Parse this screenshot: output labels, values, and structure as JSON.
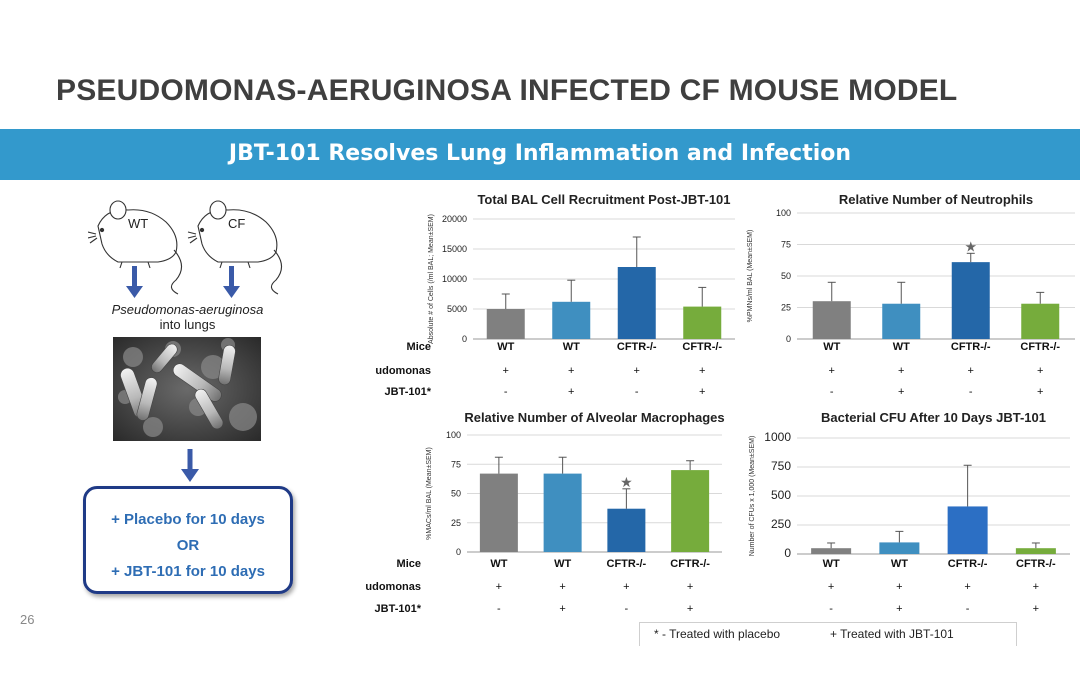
{
  "slide": {
    "title": "PSEUDOMONAS-AERUGINOSA INFECTED CF MOUSE MODEL",
    "banner": "JBT-101 Resolves Lung Inflammation and Infection",
    "page_number": "26"
  },
  "left_panel": {
    "mouse_labels": [
      "WT",
      "CF"
    ],
    "infection_label_italic": "Pseudomonas-aeruginosa",
    "infection_label_rest": "into lungs",
    "treatment": {
      "line1": "+ Placebo for 10 days",
      "line2": "OR",
      "line3": "+ JBT-101 for 10 days"
    }
  },
  "colors": {
    "banner": "#3399cc",
    "title": "#3f3f3f",
    "box_border": "#1f3a86",
    "box_text": "#2e6db4",
    "arrow": "#3a5aa8",
    "bar_gray": "#808080",
    "bar_light_blue": "#3f8fc0",
    "bar_dark_blue": "#2467a8",
    "bar_green": "#76ac3c",
    "bar_mid_blue": "#2c6fc4"
  },
  "table_row_labels": {
    "mice": "Mice",
    "pseudomonas": "Pseudomonas",
    "jbt": "JBT-101*"
  },
  "legend": {
    "placebo": "* - Treated with placebo",
    "jbt": "+ Treated with JBT-101"
  },
  "chart_data": [
    {
      "type": "bar",
      "title": "Total BAL Cell Recruitment Post-JBT-101",
      "ylabel": "Absolute # of Cells (/ml BAL; Mean±SEM)",
      "ylim": [
        0,
        20000
      ],
      "yticks": [
        0,
        5000,
        10000,
        15000,
        20000
      ],
      "categories": [
        "WT",
        "WT",
        "CFTR-/-",
        "CFTR-/-"
      ],
      "values": [
        5000,
        6200,
        12000,
        5400
      ],
      "errors": [
        2500,
        3600,
        5000,
        3200
      ],
      "colors": [
        "#808080",
        "#3f8fc0",
        "#2467a8",
        "#76ac3c"
      ],
      "pseudomonas": [
        "+",
        "+",
        "+",
        "+"
      ],
      "jbt101": [
        "-",
        "+",
        "-",
        "+"
      ],
      "stars": [
        false,
        false,
        false,
        false
      ],
      "show_row_labels": true,
      "show_table": true
    },
    {
      "type": "bar",
      "title": "Relative Number of Neutrophils",
      "ylabel": "%PMNs/ml BAL (Mean±SEM)",
      "ylim": [
        0,
        100
      ],
      "yticks": [
        0,
        25,
        50,
        75,
        100
      ],
      "categories": [
        "WT",
        "WT",
        "CFTR-/-",
        "CFTR-/-"
      ],
      "values": [
        30,
        28,
        61,
        28
      ],
      "errors": [
        15,
        17,
        7,
        9
      ],
      "colors": [
        "#808080",
        "#3f8fc0",
        "#2467a8",
        "#76ac3c"
      ],
      "pseudomonas": [
        "+",
        "+",
        "+",
        "+"
      ],
      "jbt101": [
        "-",
        "+",
        "-",
        "+"
      ],
      "stars": [
        false,
        false,
        true,
        false
      ],
      "show_row_labels": false,
      "show_table": true
    },
    {
      "type": "bar",
      "title": "Relative Number of Alveolar Macrophages",
      "ylabel": "%MACs/ml BAL (Mean±SEM)",
      "ylim": [
        0,
        100
      ],
      "yticks": [
        0,
        25,
        50,
        75,
        100
      ],
      "categories": [
        "WT",
        "WT",
        "CFTR-/-",
        "CFTR-/-"
      ],
      "values": [
        67,
        67,
        37,
        70
      ],
      "errors": [
        14,
        14,
        17,
        8
      ],
      "colors": [
        "#808080",
        "#3f8fc0",
        "#2467a8",
        "#76ac3c"
      ],
      "pseudomonas": [
        "+",
        "+",
        "+",
        "+"
      ],
      "jbt101": [
        "-",
        "+",
        "-",
        "+"
      ],
      "stars": [
        false,
        false,
        true,
        false
      ],
      "show_row_labels": true,
      "show_table": true
    },
    {
      "type": "bar",
      "title": "Bacterial CFU After 10 Days JBT-101",
      "ylabel": "Number of CFUs x 1,000 (Mean±SEM)",
      "ylim": [
        0,
        1000
      ],
      "yticks": [
        0,
        250,
        500,
        750,
        1000
      ],
      "categories": [
        "WT",
        "WT",
        "CFTR-/-",
        "CFTR-/-"
      ],
      "values": [
        50,
        100,
        410,
        50
      ],
      "errors": [
        45,
        95,
        355,
        45
      ],
      "colors": [
        "#808080",
        "#3f8fc0",
        "#2c6fc4",
        "#76ac3c"
      ],
      "pseudomonas": [
        "+",
        "+",
        "+",
        "+"
      ],
      "jbt101": [
        "-",
        "+",
        "-",
        "+"
      ],
      "stars": [
        false,
        false,
        false,
        false
      ],
      "show_row_labels": false,
      "show_table": true
    }
  ]
}
